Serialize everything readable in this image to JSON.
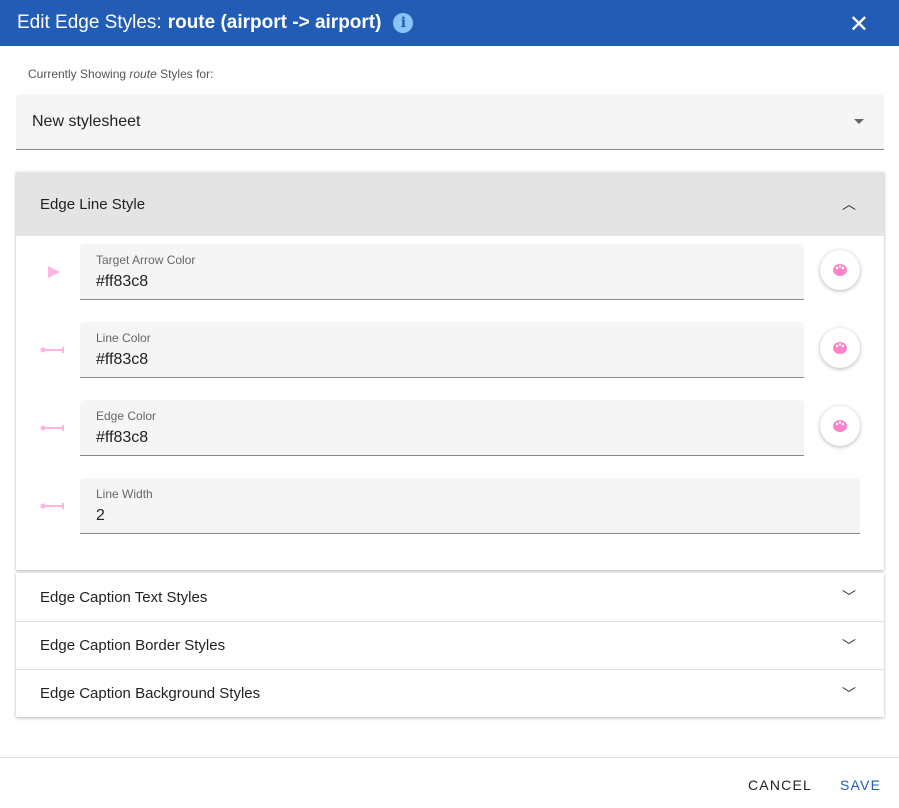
{
  "header": {
    "title_prefix": "Edit Edge Styles:",
    "title_bold": "route (airport -> airport)",
    "info_icon": "i",
    "close_icon": "✕"
  },
  "subtitle": {
    "pre": "Currently Showing ",
    "em": "route",
    "post": " Styles for:"
  },
  "stylesheet_select": {
    "value": "New stylesheet"
  },
  "panels": {
    "line_style": {
      "title": "Edge Line Style",
      "fields": [
        {
          "label": "Target Arrow Color",
          "value": "#ff83c8"
        },
        {
          "label": "Line Color",
          "value": "#ff83c8"
        },
        {
          "label": "Edge Color",
          "value": "#ff83c8"
        },
        {
          "label": "Line Width",
          "value": "2"
        }
      ]
    },
    "collapsed": [
      "Edge Caption Text Styles",
      "Edge Caption Border Styles",
      "Edge Caption Background Styles"
    ]
  },
  "colors": {
    "accent": "#225cb5",
    "edge": "#ff83c8",
    "icon": "#ffb3e0"
  },
  "footer": {
    "cancel": "CANCEL",
    "save": "SAVE"
  }
}
